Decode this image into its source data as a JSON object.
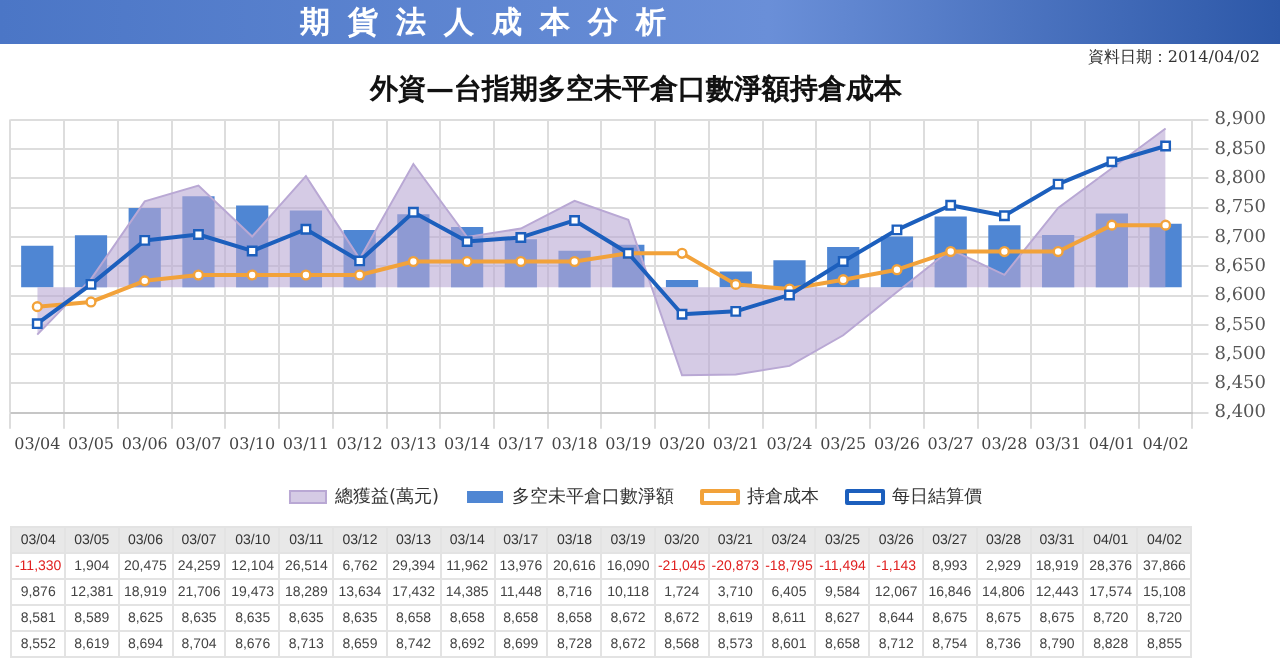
{
  "chart_data": {
    "type": "bar",
    "title": "期貨法人成本分析",
    "subtitle": "外資—台指期多空未平倉口數淨額持倉成本",
    "annotations": [
      "資料日期：2014/04/02"
    ],
    "categories": [
      "03/04",
      "03/05",
      "03/06",
      "03/07",
      "03/10",
      "03/11",
      "03/12",
      "03/13",
      "03/14",
      "03/17",
      "03/18",
      "03/19",
      "03/20",
      "03/21",
      "03/24",
      "03/25",
      "03/26",
      "03/27",
      "03/28",
      "03/31",
      "04/01",
      "04/02"
    ],
    "series": [
      {
        "name": "總獲益(萬元)",
        "type": "area",
        "color": "#b9a8d4",
        "values": [
          -11330,
          1904,
          20475,
          24259,
          12104,
          26514,
          6762,
          29394,
          11962,
          13976,
          20616,
          16090,
          -21045,
          -20873,
          -18795,
          -11494,
          -1143,
          8993,
          2929,
          18919,
          28376,
          37866
        ],
        "value_labels": [
          "-11,330",
          "1,904",
          "20,475",
          "24,259",
          "12,104",
          "26,514",
          "6,762",
          "29,394",
          "11,962",
          "13,976",
          "20,616",
          "16,090",
          "-21,045",
          "-20,873",
          "-18,795",
          "-11,494",
          "-1,143",
          "8,993",
          "2,929",
          "18,919",
          "28,376",
          "37,866"
        ]
      },
      {
        "name": "多空未平倉口數淨額",
        "color": "#4f86d3",
        "values": [
          9876,
          12381,
          18919,
          21706,
          19473,
          18289,
          13634,
          17432,
          14385,
          11448,
          8716,
          10118,
          1724,
          3710,
          6405,
          9584,
          12067,
          16846,
          14806,
          12443,
          17574,
          15108
        ],
        "value_labels": [
          "9,876",
          "12,381",
          "18,919",
          "21,706",
          "19,473",
          "18,289",
          "13,634",
          "17,432",
          "14,385",
          "11,448",
          "8,716",
          "10,118",
          "1,724",
          "3,710",
          "6,405",
          "9,584",
          "12,067",
          "16,846",
          "14,806",
          "12,443",
          "17,574",
          "15,108"
        ]
      },
      {
        "name": "持倉成本",
        "type": "line",
        "axis": "y2",
        "marker": "circle",
        "color": "#f2a23a",
        "values": [
          8581,
          8589,
          8625,
          8635,
          8635,
          8635,
          8635,
          8658,
          8658,
          8658,
          8658,
          8672,
          8672,
          8619,
          8611,
          8627,
          8644,
          8675,
          8675,
          8675,
          8720,
          8720
        ],
        "value_labels": [
          "8,581",
          "8,589",
          "8,625",
          "8,635",
          "8,635",
          "8,635",
          "8,635",
          "8,658",
          "8,658",
          "8,658",
          "8,658",
          "8,672",
          "8,672",
          "8,619",
          "8,611",
          "8,627",
          "8,644",
          "8,675",
          "8,675",
          "8,675",
          "8,720",
          "8,720"
        ]
      },
      {
        "name": "每日結算價",
        "type": "line",
        "axis": "y2",
        "marker": "square",
        "color": "#1c5fbd",
        "values": [
          8552,
          8619,
          8694,
          8704,
          8676,
          8713,
          8659,
          8742,
          8692,
          8699,
          8728,
          8672,
          8568,
          8573,
          8601,
          8658,
          8712,
          8754,
          8736,
          8790,
          8828,
          8855
        ],
        "value_labels": [
          "8,552",
          "8,619",
          "8,694",
          "8,704",
          "8,676",
          "8,713",
          "8,659",
          "8,742",
          "8,692",
          "8,699",
          "8,728",
          "8,672",
          "8,568",
          "8,573",
          "8,601",
          "8,658",
          "8,712",
          "8,754",
          "8,736",
          "8,790",
          "8,828",
          "8,855"
        ]
      }
    ],
    "y2lim": [
      8400,
      8900
    ],
    "y2ticks": [
      {
        "value": 8400,
        "label": "8,400"
      },
      {
        "value": 8450,
        "label": "8,450"
      },
      {
        "value": 8500,
        "label": "8,500"
      },
      {
        "value": 8550,
        "label": "8,550"
      },
      {
        "value": 8600,
        "label": "8,600"
      },
      {
        "value": 8650,
        "label": "8,650"
      },
      {
        "value": 8700,
        "label": "8,700"
      },
      {
        "value": 8750,
        "label": "8,750"
      },
      {
        "value": 8800,
        "label": "8,800"
      },
      {
        "value": 8850,
        "label": "8,850"
      },
      {
        "value": 8900,
        "label": "8,900"
      }
    ],
    "grid": true,
    "legend": "bottom"
  }
}
